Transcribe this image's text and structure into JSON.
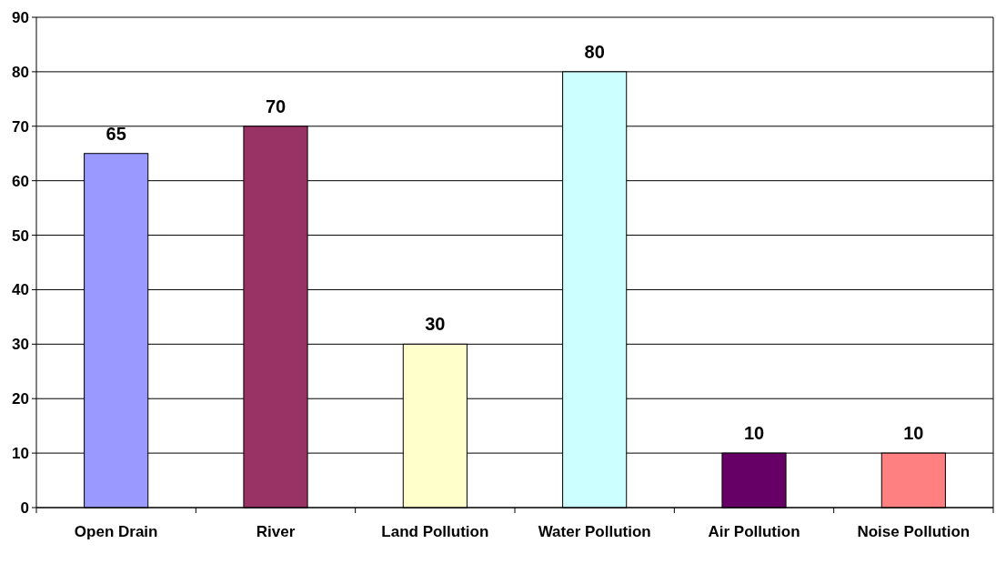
{
  "chart_data": {
    "type": "bar",
    "categories": [
      "Open Drain",
      "River",
      "Land Pollution",
      "Water Pollution",
      "Air Pollution",
      "Noise Pollution"
    ],
    "values": [
      65,
      70,
      30,
      80,
      10,
      10
    ],
    "colors": [
      "#9999ff",
      "#993366",
      "#ffffcc",
      "#ccffff",
      "#660066",
      "#ff8080"
    ],
    "ylim": [
      0,
      90
    ],
    "yticks": [
      0,
      10,
      20,
      30,
      40,
      50,
      60,
      70,
      80,
      90
    ],
    "grid": "y",
    "data_labels": true
  }
}
